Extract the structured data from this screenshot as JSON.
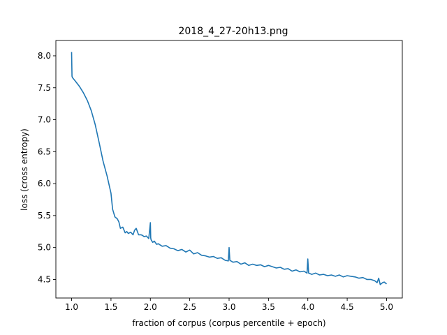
{
  "chart_data": {
    "type": "line",
    "title": "2018_4_27-20h13.png",
    "xlabel": "fraction of corpus (corpus percentile + epoch)",
    "ylabel": "loss (cross entropy)",
    "xlim": [
      0.8,
      5.2
    ],
    "ylim": [
      4.21,
      8.24
    ],
    "x_ticks": [
      1.0,
      1.5,
      2.0,
      2.5,
      3.0,
      3.5,
      4.0,
      4.5,
      5.0
    ],
    "x_tick_labels": [
      "1.0",
      "1.5",
      "2.0",
      "2.5",
      "3.0",
      "3.5",
      "4.0",
      "4.5",
      "5.0"
    ],
    "y_ticks": [
      4.5,
      5.0,
      5.5,
      6.0,
      6.5,
      7.0,
      7.5,
      8.0
    ],
    "y_tick_labels": [
      "4.5",
      "5.0",
      "5.5",
      "6.0",
      "6.5",
      "7.0",
      "7.5",
      "8.0"
    ],
    "grid": false,
    "colors": {
      "series": "#1f77b4"
    },
    "series": [
      {
        "x": [
          1.0,
          1.005,
          1.01,
          1.05,
          1.1,
          1.15,
          1.2,
          1.25,
          1.3,
          1.35,
          1.4,
          1.45,
          1.5,
          1.52,
          1.55,
          1.58,
          1.6,
          1.62,
          1.65,
          1.68,
          1.7,
          1.72,
          1.75,
          1.78,
          1.8,
          1.82,
          1.85,
          1.88,
          1.9,
          1.92,
          1.95,
          1.98,
          2.0,
          2.005,
          2.01,
          2.03,
          2.05,
          2.08,
          2.1,
          2.15,
          2.2,
          2.25,
          2.3,
          2.35,
          2.4,
          2.45,
          2.5,
          2.55,
          2.6,
          2.65,
          2.7,
          2.75,
          2.8,
          2.85,
          2.9,
          2.95,
          2.99,
          3.0,
          3.01,
          3.05,
          3.1,
          3.15,
          3.2,
          3.25,
          3.3,
          3.35,
          3.4,
          3.45,
          3.5,
          3.55,
          3.6,
          3.65,
          3.7,
          3.75,
          3.8,
          3.85,
          3.9,
          3.95,
          3.99,
          4.0,
          4.01,
          4.05,
          4.1,
          4.15,
          4.2,
          4.25,
          4.3,
          4.35,
          4.4,
          4.45,
          4.5,
          4.55,
          4.6,
          4.65,
          4.7,
          4.75,
          4.8,
          4.85,
          4.88,
          4.9,
          4.92,
          4.95,
          4.97,
          5.0
        ],
        "values": [
          8.06,
          7.68,
          7.66,
          7.6,
          7.52,
          7.42,
          7.3,
          7.14,
          6.92,
          6.64,
          6.35,
          6.12,
          5.85,
          5.6,
          5.48,
          5.45,
          5.4,
          5.3,
          5.32,
          5.23,
          5.25,
          5.22,
          5.24,
          5.2,
          5.27,
          5.3,
          5.2,
          5.2,
          5.19,
          5.17,
          5.18,
          5.14,
          5.39,
          5.15,
          5.12,
          5.08,
          5.1,
          5.05,
          5.06,
          5.02,
          5.03,
          4.99,
          4.98,
          4.95,
          4.97,
          4.93,
          4.96,
          4.9,
          4.92,
          4.88,
          4.87,
          4.85,
          4.86,
          4.83,
          4.84,
          4.8,
          4.79,
          5.0,
          4.8,
          4.77,
          4.78,
          4.74,
          4.76,
          4.72,
          4.74,
          4.72,
          4.73,
          4.7,
          4.72,
          4.7,
          4.68,
          4.69,
          4.66,
          4.67,
          4.63,
          4.65,
          4.62,
          4.63,
          4.6,
          4.82,
          4.6,
          4.58,
          4.6,
          4.57,
          4.58,
          4.56,
          4.57,
          4.55,
          4.57,
          4.54,
          4.56,
          4.55,
          4.54,
          4.52,
          4.53,
          4.5,
          4.5,
          4.48,
          4.45,
          4.52,
          4.42,
          4.45,
          4.46,
          4.43
        ]
      }
    ]
  }
}
